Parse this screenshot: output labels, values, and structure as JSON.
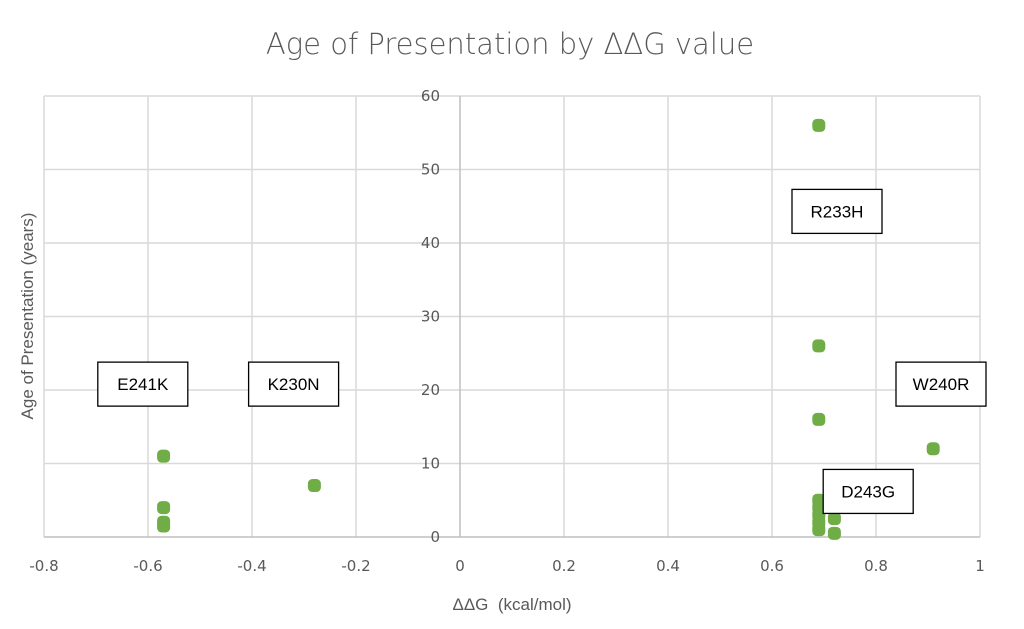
{
  "chart_data": {
    "type": "scatter",
    "title": "Age of Presentation by ΔΔG value",
    "xlabel": "ΔΔG  (kcal/mol)",
    "ylabel": "Age of Presentation (years)",
    "xlim": [
      -0.8,
      1.0
    ],
    "ylim": [
      0,
      60
    ],
    "xticks": [
      -0.8,
      -0.6,
      -0.4,
      -0.2,
      0,
      0.2,
      0.4,
      0.6,
      0.8,
      1.0
    ],
    "xtick_labels": [
      "-0.8",
      "-0.6",
      "-0.4",
      "-0.2",
      "0",
      "0.2",
      "0.4",
      "0.6",
      "0.8",
      "1"
    ],
    "yticks": [
      0,
      10,
      20,
      30,
      40,
      50,
      60
    ],
    "ytick_labels": [
      "0",
      "10",
      "20",
      "30",
      "40",
      "50",
      "60"
    ],
    "grid": true,
    "legend": "none",
    "marker_color": "#70ad47",
    "series": [
      {
        "name": "Age of Presentation",
        "points": [
          {
            "x": -0.57,
            "y": 11
          },
          {
            "x": -0.57,
            "y": 4
          },
          {
            "x": -0.57,
            "y": 2
          },
          {
            "x": -0.57,
            "y": 1.5
          },
          {
            "x": -0.28,
            "y": 7
          },
          {
            "x": 0.69,
            "y": 56
          },
          {
            "x": 0.69,
            "y": 26
          },
          {
            "x": 0.69,
            "y": 16
          },
          {
            "x": 0.69,
            "y": 5
          },
          {
            "x": 0.69,
            "y": 4
          },
          {
            "x": 0.69,
            "y": 3
          },
          {
            "x": 0.69,
            "y": 2
          },
          {
            "x": 0.69,
            "y": 1
          },
          {
            "x": 0.72,
            "y": 2.5
          },
          {
            "x": 0.72,
            "y": 0.5
          },
          {
            "x": 0.91,
            "y": 12
          }
        ]
      }
    ],
    "annotations": [
      {
        "text": "E241K",
        "x": -0.61,
        "y": 20.8
      },
      {
        "text": "K230N",
        "x": -0.32,
        "y": 20.8
      },
      {
        "text": "R233H",
        "x": 0.725,
        "y": 44.3
      },
      {
        "text": "W240R",
        "x": 0.925,
        "y": 20.8
      },
      {
        "text": "D243G",
        "x": 0.785,
        "y": 6.2
      }
    ]
  }
}
